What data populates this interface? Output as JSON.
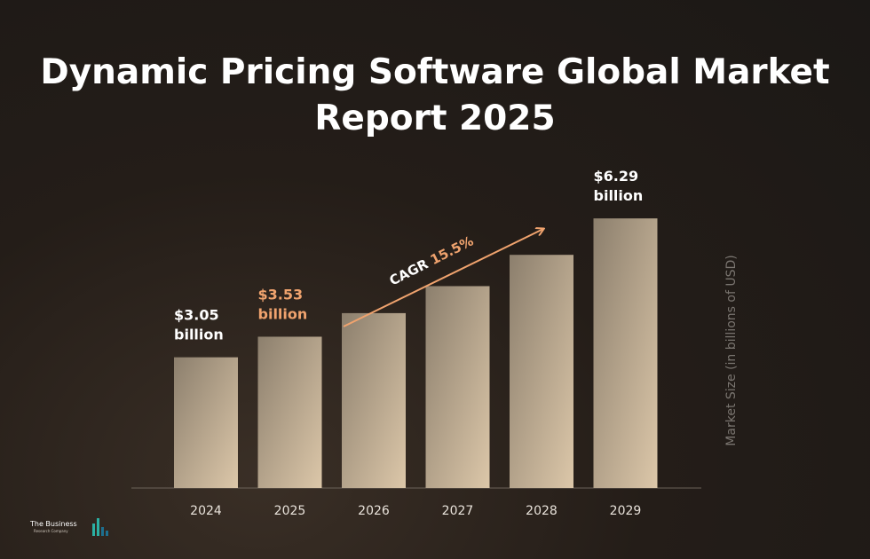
{
  "title": "Dynamic Pricing Software Global Market Report 2025",
  "logo": {
    "name": "The Business",
    "sub": "Research Company"
  },
  "colors": {
    "bar_top": "#8c7f6d",
    "bar_bottom": "#dcc7a9",
    "accent": "#f0a36e",
    "label": "#ffffff",
    "axis_label": "#7a7570"
  },
  "chart_data": {
    "type": "bar",
    "categories": [
      "2024",
      "2025",
      "2026",
      "2027",
      "2028",
      "2029"
    ],
    "values": [
      3.05,
      3.53,
      4.08,
      4.71,
      5.44,
      6.29
    ],
    "ylabel": "Market Size (in billions of USD)",
    "ylim": [
      0,
      6.5
    ],
    "data_labels": [
      {
        "index": 0,
        "line1": "$3.05",
        "line2": "billion",
        "highlight": false
      },
      {
        "index": 1,
        "line1": "$3.53",
        "line2": "billion",
        "highlight": true
      },
      {
        "index": 5,
        "line1": "$6.29",
        "line2": "billion",
        "highlight": false
      }
    ],
    "annotation": {
      "prefix": "CAGR ",
      "value": "15.5%"
    },
    "grid": false
  }
}
